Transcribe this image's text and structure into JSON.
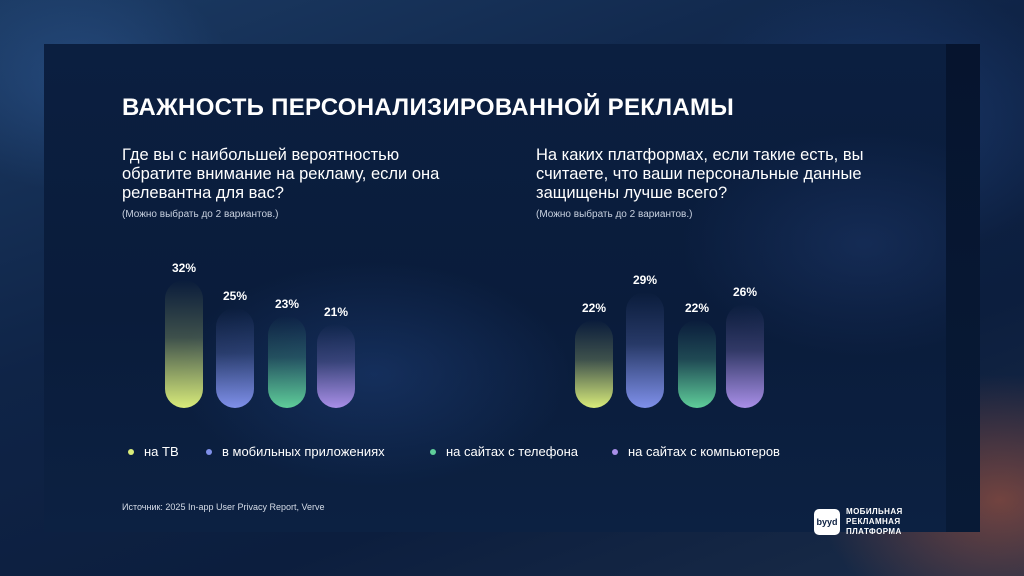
{
  "title": "ВАЖНОСТЬ ПЕРСОНАЛИЗИРОВАННОЙ РЕКЛАМЫ",
  "left": {
    "question": "Где вы с наибольшей вероятностью обратите внимание на рекламу, если она релевантна для вас?",
    "note": "(Можно выбрать до 2 вариантов.)"
  },
  "right": {
    "question": "На каких платформах, если такие есть, вы считаете, что ваши персональные данные защищены лучше всего?",
    "note": "(Можно выбрать до 2 вариантов.)"
  },
  "legend": [
    {
      "label": "на ТВ",
      "color": "#d9ec7a"
    },
    {
      "label": "в мобильных приложениях",
      "color": "#7f90ea"
    },
    {
      "label": "на сайтах с телефона",
      "color": "#5fce9a"
    },
    {
      "label": "на сайтах с компьютеров",
      "color": "#a98fe8"
    }
  ],
  "chart_data": [
    {
      "type": "bar",
      "categories": [
        "на ТВ",
        "в мобильных приложениях",
        "на сайтах с телефона",
        "на сайтах с компьютеров"
      ],
      "values": [
        32,
        25,
        23,
        21
      ],
      "labels": [
        "32%",
        "25%",
        "23%",
        "21%"
      ],
      "unit": "%",
      "colors": [
        "#d9ec7a",
        "#7f90ea",
        "#5fce9a",
        "#a98fe8"
      ]
    },
    {
      "type": "bar",
      "categories": [
        "на ТВ",
        "в мобильных приложениях",
        "на сайтах с телефона",
        "на сайтах с компьютеров"
      ],
      "values": [
        22,
        29,
        22,
        26
      ],
      "labels": [
        "22%",
        "29%",
        "22%",
        "26%"
      ],
      "unit": "%",
      "colors": [
        "#d9ec7a",
        "#7f90ea",
        "#5fce9a",
        "#a98fe8"
      ]
    }
  ],
  "source": "Источник: 2025 In-app User Privacy Report, Verve",
  "logo": {
    "mark": "byyd",
    "lines": [
      "МОБИЛЬНАЯ",
      "РЕКЛАМНАЯ",
      "ПЛАТФОРМА"
    ]
  }
}
